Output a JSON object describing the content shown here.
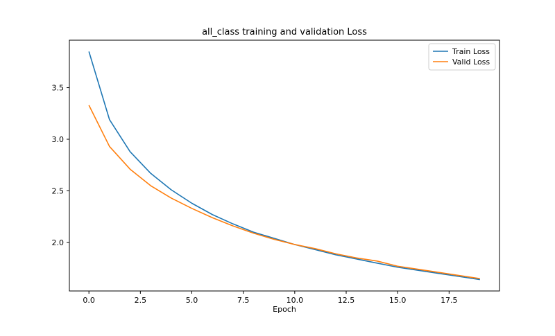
{
  "chart_data": {
    "type": "line",
    "title": "all_class training and validation Loss",
    "xlabel": "Epoch",
    "ylabel": "",
    "x": [
      0,
      1,
      2,
      3,
      4,
      5,
      6,
      7,
      8,
      9,
      10,
      11,
      12,
      13,
      14,
      15,
      16,
      17,
      18,
      19
    ],
    "series": [
      {
        "name": "Train Loss",
        "color": "#1f77b4",
        "values": [
          3.85,
          3.19,
          2.88,
          2.67,
          2.51,
          2.38,
          2.27,
          2.18,
          2.1,
          2.04,
          1.98,
          1.93,
          1.88,
          1.84,
          1.8,
          1.76,
          1.73,
          1.7,
          1.67,
          1.64
        ]
      },
      {
        "name": "Valid Loss",
        "color": "#ff7f0e",
        "values": [
          3.33,
          2.93,
          2.71,
          2.55,
          2.43,
          2.33,
          2.24,
          2.16,
          2.09,
          2.03,
          1.98,
          1.94,
          1.89,
          1.85,
          1.82,
          1.77,
          1.74,
          1.71,
          1.68,
          1.65
        ]
      }
    ],
    "xlim": [
      -0.95,
      19.95
    ],
    "ylim": [
      1.53,
      3.96
    ],
    "xticks": [
      0.0,
      2.5,
      5.0,
      7.5,
      10.0,
      12.5,
      15.0,
      17.5
    ],
    "xtick_labels": [
      "0.0",
      "2.5",
      "5.0",
      "7.5",
      "10.0",
      "12.5",
      "15.0",
      "17.5"
    ],
    "yticks": [
      2.0,
      2.5,
      3.0,
      3.5
    ],
    "ytick_labels": [
      "2.0",
      "2.5",
      "3.0",
      "3.5"
    ],
    "grid": false,
    "legend_position": "top-right"
  }
}
